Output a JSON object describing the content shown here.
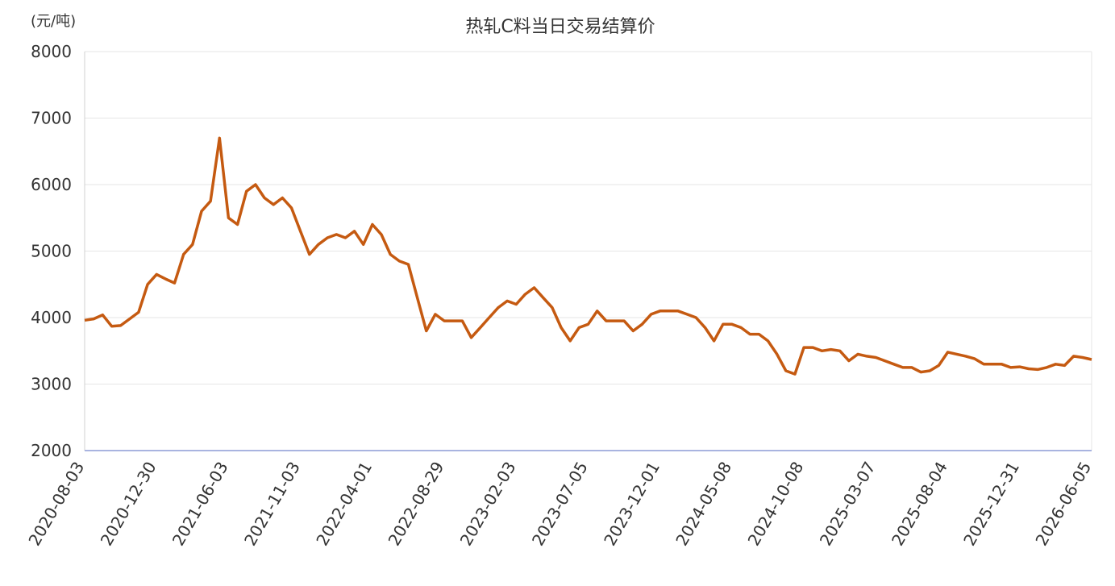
{
  "chart_data": {
    "type": "line",
    "title": "热轧C料当日交易结算价",
    "y_label": "(元/吨)",
    "categories": [
      "2020-08-03",
      null,
      null,
      null,
      null,
      null,
      null,
      null,
      "2020-12-30",
      null,
      null,
      null,
      null,
      null,
      null,
      null,
      "2021-06-03",
      null,
      null,
      null,
      null,
      null,
      null,
      null,
      "2021-11-03",
      null,
      null,
      null,
      null,
      null,
      null,
      null,
      "2022-04-01",
      null,
      null,
      null,
      null,
      null,
      null,
      null,
      "2022-08-29",
      null,
      null,
      null,
      null,
      null,
      null,
      null,
      "2023-02-03",
      null,
      null,
      null,
      null,
      null,
      null,
      null,
      "2023-07-05",
      null,
      null,
      null,
      null,
      null,
      null,
      null,
      "2023-12-01",
      null,
      null,
      null,
      null,
      null,
      null,
      null,
      "2024-05-08",
      null,
      null,
      null,
      null,
      null,
      null,
      null,
      "2024-10-08",
      null,
      null,
      null,
      null,
      null,
      null,
      null,
      "2025-03-07",
      null,
      null,
      null,
      null,
      null,
      null,
      null,
      "2025-08-04",
      null,
      null,
      null,
      null,
      null,
      null,
      null,
      "2025-12-31",
      null,
      null,
      null,
      null,
      null,
      null,
      null,
      "2026-06-05"
    ],
    "series": [
      {
        "color": "#c55a11",
        "values": [
          3960,
          3980,
          4040,
          3870,
          3880,
          3980,
          4080,
          4500,
          4650,
          4580,
          4520,
          4950,
          5100,
          5600,
          5750,
          6700,
          5500,
          5400,
          5900,
          6000,
          5800,
          5700,
          5800,
          5650,
          5300,
          4950,
          5100,
          5200,
          5250,
          5200,
          5300,
          5100,
          5400,
          5250,
          4950,
          4850,
          4800,
          4300,
          3800,
          4050,
          3950,
          3950,
          3950,
          3700,
          3850,
          4000,
          4150,
          4250,
          4200,
          4350,
          4450,
          4300,
          4150,
          3850,
          3650,
          3850,
          3900,
          4100,
          3950,
          3950,
          3950,
          3800,
          3900,
          4050,
          4100,
          4100,
          4100,
          4050,
          4000,
          3850,
          3650,
          3900,
          3900,
          3850,
          3750,
          3750,
          3650,
          3450,
          3200,
          3150,
          3550,
          3550,
          3500,
          3520,
          3500,
          3350,
          3450,
          3420,
          3400,
          3350,
          3300,
          3250,
          3250,
          3180,
          3200,
          3280,
          3480,
          3450,
          3420,
          3380,
          3300,
          3300,
          3300,
          3250,
          3260,
          3230,
          3220,
          3250,
          3300,
          3280,
          3420,
          3400,
          3370
        ]
      }
    ],
    "ylim": [
      2000,
      8000
    ],
    "yticks": [
      2000,
      3000,
      4000,
      5000,
      6000,
      7000,
      8000
    ],
    "grid": true
  }
}
